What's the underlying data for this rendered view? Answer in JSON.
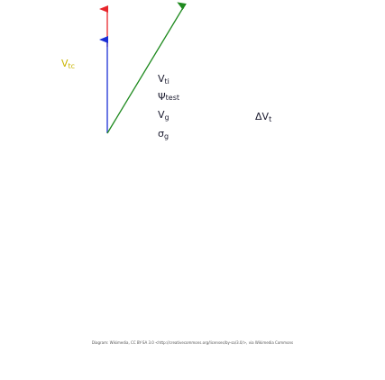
{
  "labels": {
    "vtc": {
      "main": "V",
      "sub": "tc"
    },
    "vti": {
      "main": "V",
      "sub": "ti"
    },
    "vtest": {
      "main": "Ψ",
      "sub": "test"
    },
    "vg": {
      "main": "V",
      "sub": "g"
    },
    "og": {
      "main": "σ",
      "sub": "g"
    },
    "dvt": {
      "main": "ΔV",
      "sub": "t"
    }
  },
  "colors": {
    "vtc": "#c9b400",
    "red_arrow": "#e8262c",
    "blue_arrow": "#1b2fd6",
    "green_arrow": "#1f8a1f",
    "text": "#1a1a2e"
  },
  "credit": "Diagram: Wikimedia, CC BY-SA 3.0 <http://creativecommons.org/licenses/by-sa/3.0/>, via Wikimedia Commons"
}
